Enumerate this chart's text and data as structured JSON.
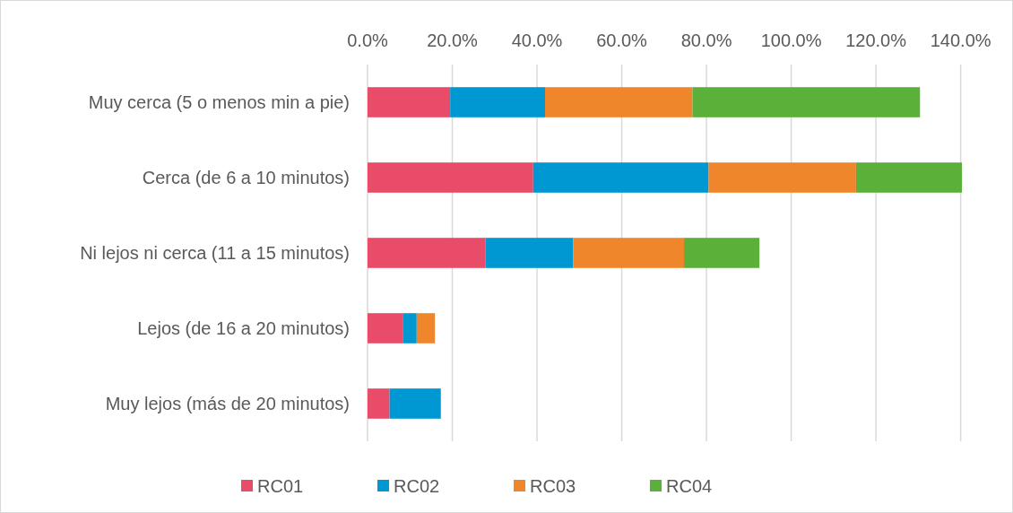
{
  "chart_data": {
    "type": "bar",
    "orientation": "horizontal",
    "stacked": true,
    "categories": [
      "Muy cerca (5 o menos min a pie)",
      "Cerca (de 6 a 10 minutos)",
      "Ni lejos ni cerca (11 a 15 minutos)",
      "Lejos (de 16 a 20 minutos)",
      "Muy lejos (más de 20 minutos)"
    ],
    "series": [
      {
        "name": "RC01",
        "color": "#e84c69",
        "values": [
          19.5,
          39.1,
          27.8,
          8.3,
          5.2
        ]
      },
      {
        "name": "RC02",
        "color": "#0098d3",
        "values": [
          22.4,
          41.4,
          20.7,
          3.3,
          12.1
        ]
      },
      {
        "name": "RC03",
        "color": "#ef862c",
        "values": [
          34.8,
          34.8,
          26.2,
          4.3,
          0
        ]
      },
      {
        "name": "RC04",
        "color": "#5bb03a",
        "values": [
          53.7,
          25.0,
          17.8,
          0,
          0
        ]
      }
    ],
    "xlim": [
      0,
      140.5
    ],
    "xticks": [
      {
        "value": 0,
        "label": "0.0%"
      },
      {
        "value": 20,
        "label": "20.0%"
      },
      {
        "value": 40,
        "label": "40.0%"
      },
      {
        "value": 60,
        "label": "60.0%"
      },
      {
        "value": 80,
        "label": "80.0%"
      },
      {
        "value": 100,
        "label": "100.0%"
      },
      {
        "value": 120,
        "label": "120.0%"
      },
      {
        "value": 140,
        "label": "140.0%"
      }
    ],
    "grid": "x",
    "legend": "bottom"
  }
}
